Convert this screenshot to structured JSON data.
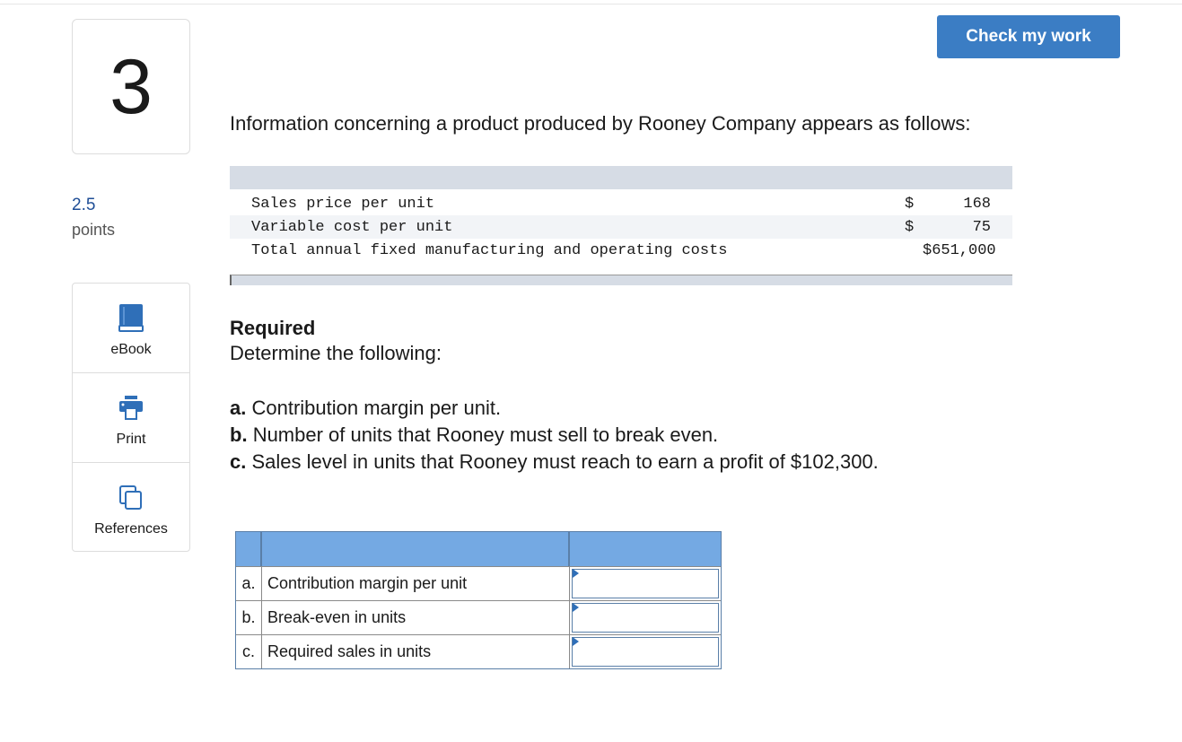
{
  "question": {
    "number": "3",
    "points_value": "2.5",
    "points_label": "points"
  },
  "tools": [
    {
      "label": "eBook",
      "icon": "book-icon"
    },
    {
      "label": "Print",
      "icon": "printer-icon"
    },
    {
      "label": "References",
      "icon": "references-icon"
    }
  ],
  "check_button": "Check my work",
  "intro": "Information concerning a product produced by Rooney Company appears as follows:",
  "info_table": {
    "rows": [
      {
        "label": "Sales price per unit",
        "currency": "$",
        "amount": "168"
      },
      {
        "label": "Variable cost per unit",
        "currency": "$",
        "amount": "75"
      },
      {
        "label": "Total annual fixed manufacturing and operating costs",
        "currency": "",
        "amount": "$651,000"
      }
    ]
  },
  "required": {
    "title": "Required",
    "subtitle": "Determine the following:"
  },
  "parts": [
    {
      "letter": "a.",
      "text": "Contribution margin per unit."
    },
    {
      "letter": "b.",
      "text": "Number of units that Rooney must sell to break even."
    },
    {
      "letter": "c.",
      "text": "Sales level in units that Rooney must reach to earn a profit of $102,300."
    }
  ],
  "answer_table": {
    "rows": [
      {
        "letter": "a.",
        "label": "Contribution margin per unit",
        "value": ""
      },
      {
        "letter": "b.",
        "label": "Break-even in units",
        "value": ""
      },
      {
        "letter": "c.",
        "label": "Required sales in units",
        "value": ""
      }
    ]
  },
  "colors": {
    "button": "#3b7dc4",
    "answer_header": "#74a9e3",
    "info_header": "#d6dce5",
    "points": "#1f4e96"
  }
}
